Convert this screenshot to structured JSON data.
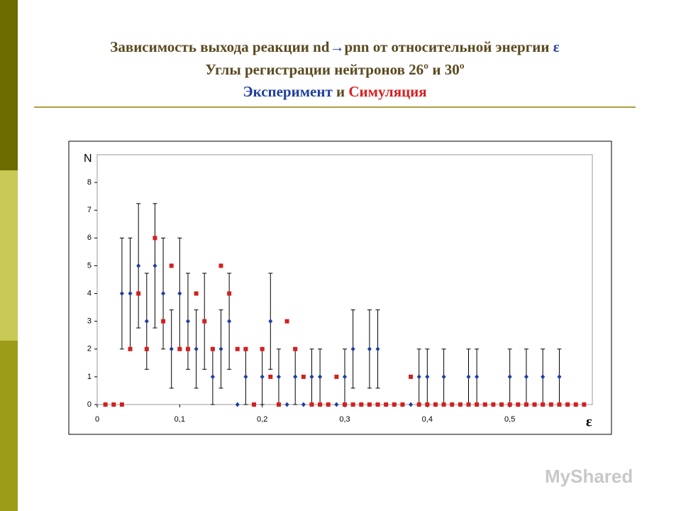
{
  "header": {
    "line1": "Зависимость выхода реакции nd",
    "arrow": "→",
    "line1b": "pnn от относительной энергии",
    "epsilon": "ε",
    "line2": "Углы регистрации нейтронов 26º и 30º",
    "and": "и"
  },
  "chart_data": {
    "type": "scatter",
    "x_label": "ε",
    "y_label": "N",
    "x": [
      0.01,
      0.02,
      0.03,
      0.04,
      0.05,
      0.06,
      0.07,
      0.08,
      0.09,
      0.1,
      0.11,
      0.12,
      0.13,
      0.14,
      0.15,
      0.16,
      0.17,
      0.18,
      0.19,
      0.2,
      0.21,
      0.22,
      0.23,
      0.24,
      0.25,
      0.26,
      0.27,
      0.28,
      0.29,
      0.3,
      0.31,
      0.32,
      0.33,
      0.34,
      0.35,
      0.36,
      0.37,
      0.38,
      0.39,
      0.4,
      0.41,
      0.42,
      0.43,
      0.44,
      0.45,
      0.46,
      0.47,
      0.48,
      0.49,
      0.5,
      0.51,
      0.52,
      0.53,
      0.54,
      0.55,
      0.56,
      0.57,
      0.58,
      0.59
    ],
    "series": [
      {
        "name": "Эксперимент",
        "color": "#1f3f9f",
        "marker": "diamond",
        "values": [
          0,
          0,
          4,
          4,
          5,
          3,
          5,
          4,
          2,
          4,
          3,
          2,
          3,
          1,
          2,
          3,
          0,
          1,
          0,
          1,
          3,
          1,
          0,
          1,
          0,
          1,
          1,
          0,
          0,
          1,
          2,
          0,
          2,
          2,
          0,
          0,
          0,
          0,
          1,
          1,
          0,
          1,
          0,
          0,
          1,
          1,
          0,
          0,
          0,
          1,
          0,
          1,
          0,
          1,
          0,
          1,
          0,
          0,
          0
        ],
        "errors": [
          0,
          0,
          2,
          2,
          2.24,
          1.73,
          2.24,
          2,
          1.41,
          2,
          1.73,
          1.41,
          1.73,
          1,
          1.41,
          1.73,
          0,
          1,
          0,
          1,
          1.73,
          1,
          0,
          1,
          0,
          1,
          1,
          0,
          0,
          1,
          1.41,
          0,
          1.41,
          1.41,
          0,
          0,
          0,
          0,
          1,
          1,
          0,
          1,
          0,
          0,
          1,
          1,
          0,
          0,
          0,
          1,
          0,
          1,
          0,
          1,
          0,
          1,
          0,
          0,
          0
        ]
      },
      {
        "name": "Симуляция",
        "color": "#d42020",
        "marker": "square",
        "values": [
          0,
          0,
          0,
          2,
          4,
          2,
          6,
          3,
          5,
          2,
          2,
          4,
          3,
          2,
          5,
          4,
          2,
          2,
          0,
          2,
          1,
          0,
          3,
          2,
          1,
          0,
          0,
          0,
          1,
          0,
          0,
          0,
          0,
          0,
          0,
          0,
          0,
          1,
          0,
          0,
          0,
          0,
          0,
          0,
          0,
          0,
          0,
          0,
          0,
          0,
          0,
          0,
          0,
          0,
          0,
          0,
          0,
          0,
          0
        ]
      }
    ],
    "xlim": [
      0,
      0.6
    ],
    "ylim": [
      0,
      9
    ],
    "xticks": [
      0,
      {
        "value": 0.1,
        "label": "0,1"
      },
      {
        "value": 0.2,
        "label": "0,2"
      },
      {
        "value": 0.3,
        "label": "0,3"
      },
      {
        "value": 0.4,
        "label": "0,4"
      },
      {
        "value": 0.5,
        "label": "0,5"
      }
    ],
    "yticks": [
      0,
      1,
      2,
      3,
      4,
      5,
      6,
      7,
      8
    ]
  },
  "watermark": "MyShared"
}
